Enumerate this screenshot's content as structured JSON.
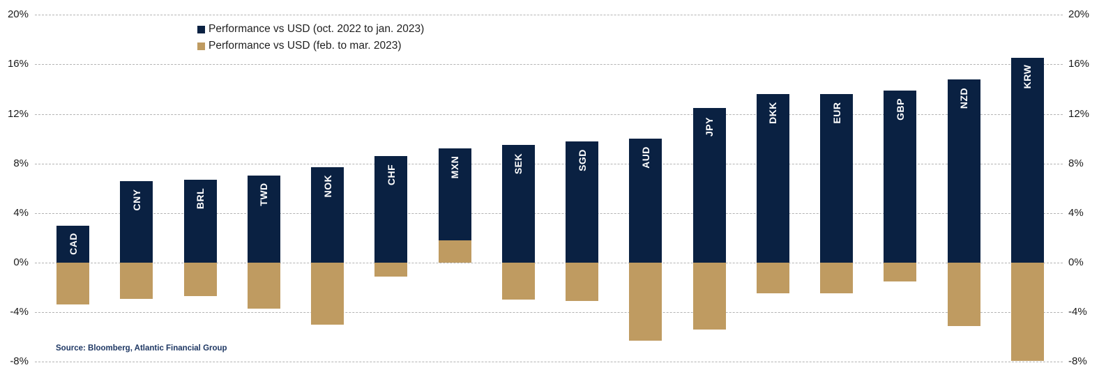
{
  "chart_data": {
    "type": "bar",
    "title": "",
    "categories": [
      "CAD",
      "CNY",
      "BRL",
      "TWD",
      "NOK",
      "CHF",
      "MXN",
      "SEK",
      "SGD",
      "AUD",
      "JPY",
      "DKK",
      "EUR",
      "GBP",
      "NZD",
      "KRW"
    ],
    "series": [
      {
        "name": "Performance vs USD (oct. 2022 to jan. 2023)",
        "color": "#0a2142",
        "values": [
          3.0,
          6.6,
          6.7,
          7.0,
          7.7,
          8.6,
          9.2,
          9.5,
          9.8,
          10.0,
          12.5,
          13.6,
          13.6,
          13.9,
          14.8,
          16.5
        ]
      },
      {
        "name": "Performance vs USD (feb. to mar. 2023)",
        "color": "#bf9b61",
        "values": [
          -3.4,
          -2.9,
          -2.7,
          -3.7,
          -5.0,
          -1.1,
          1.8,
          -3.0,
          -3.1,
          -6.3,
          -5.4,
          -2.5,
          -2.5,
          -1.5,
          -5.1,
          -7.9
        ]
      }
    ],
    "xlabel": "",
    "ylabel": "",
    "ylim": [
      -8,
      20
    ],
    "yticks": [
      "20%",
      "16%",
      "12%",
      "8%",
      "4%",
      "0%",
      "-4%",
      "-8%"
    ],
    "yticks_both_sides": true,
    "grid": "horizontal-dashed",
    "legend_position": "top-left-inset",
    "bar_labels": "category-code-inside-top-rotated",
    "source": "Source: Bloomberg, Atlantic Financial Group"
  }
}
